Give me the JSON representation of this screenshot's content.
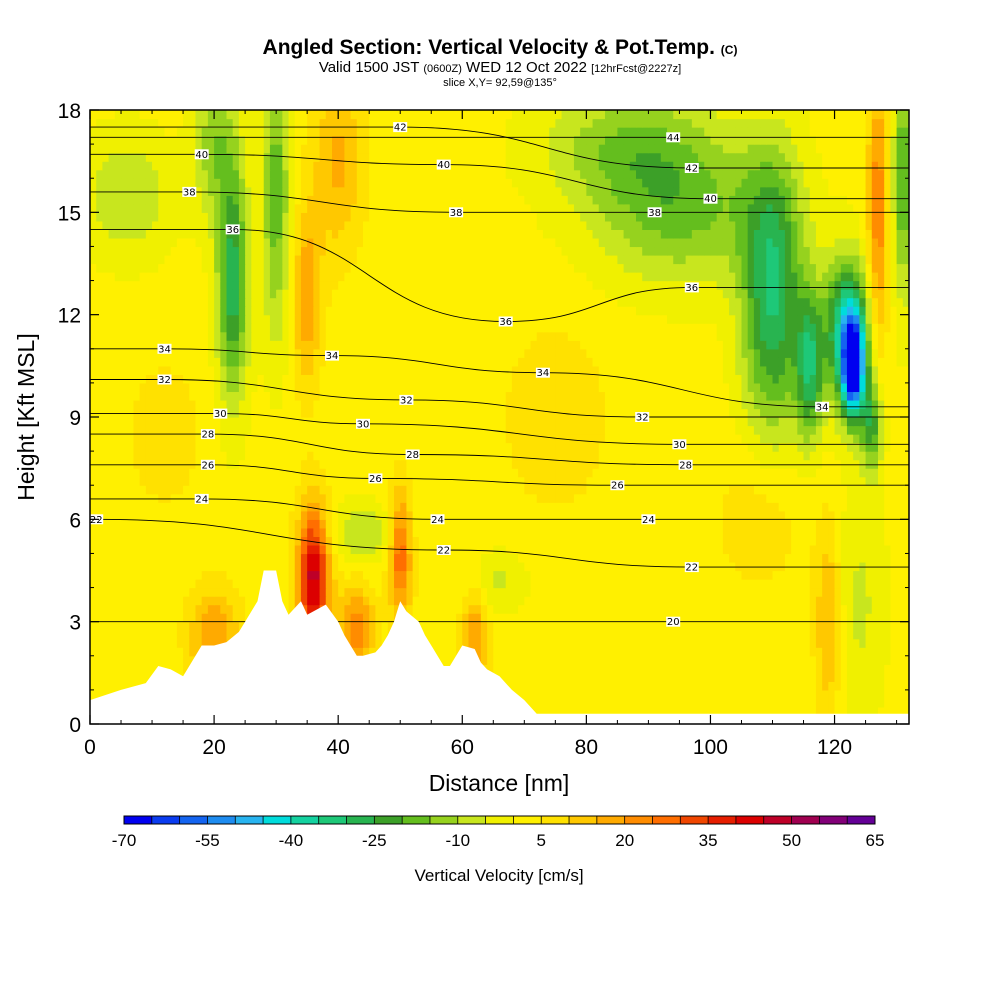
{
  "title": {
    "main": "Angled Section: Vertical Velocity & Pot.Temp.",
    "main_units": "(C)",
    "valid_prefix": "Valid 1500 JST",
    "valid_utc": "(0600Z)",
    "valid_date": "WED 12 Oct 2022",
    "forecast": "[12hrFcst@2227z]",
    "slice": "slice X,Y= 92,59@135°"
  },
  "chart_data": {
    "type": "heatmap",
    "xlabel": "Distance [nm]",
    "ylabel": "Height [Kft MSL]",
    "xlim": [
      0,
      132
    ],
    "ylim": [
      0,
      18
    ],
    "x_ticks": [
      0,
      20,
      40,
      60,
      80,
      100,
      120
    ],
    "y_ticks": [
      0,
      3,
      6,
      9,
      12,
      15,
      18
    ],
    "colorbar": {
      "title": "Vertical Velocity [cm/s]",
      "tick_labels": [
        -70,
        -55,
        -40,
        -25,
        -10,
        5,
        20,
        35,
        50,
        65
      ],
      "levels": [
        -70,
        -65,
        -60,
        -55,
        -50,
        -45,
        -40,
        -35,
        -30,
        -25,
        -20,
        -15,
        -10,
        -5,
        0,
        5,
        10,
        15,
        20,
        25,
        30,
        35,
        40,
        45,
        50,
        55,
        60,
        65
      ],
      "colors": [
        "#0000f0",
        "#0a3cf0",
        "#1464f0",
        "#1e8cf0",
        "#28b4f0",
        "#00dcdc",
        "#14d2a0",
        "#1ec878",
        "#28b450",
        "#3ca028",
        "#64be1e",
        "#96d21e",
        "#c8e61e",
        "#f0f000",
        "#fff000",
        "#ffe100",
        "#ffc800",
        "#ffaa00",
        "#ff8c00",
        "#ff6e00",
        "#f04600",
        "#e61e00",
        "#dc0000",
        "#be0028",
        "#a00050",
        "#820078",
        "#640096"
      ]
    },
    "background_value": 2,
    "features": [
      {
        "x": 36,
        "y": 4.3,
        "sx": 1.8,
        "sy": 1.5,
        "value": 45
      },
      {
        "x": 35,
        "y": 12.5,
        "sx": 1.6,
        "sy": 1.8,
        "value": 18
      },
      {
        "x": 23,
        "y": 13,
        "sx": 1.8,
        "sy": 2.4,
        "value": -30
      },
      {
        "x": 30,
        "y": 15.5,
        "sx": 1.6,
        "sy": 3.0,
        "value": -20
      },
      {
        "x": 20,
        "y": 17,
        "sx": 2.5,
        "sy": 1.5,
        "value": -15
      },
      {
        "x": 6,
        "y": 15.5,
        "sx": 5.0,
        "sy": 1.3,
        "value": -12
      },
      {
        "x": 95,
        "y": 15,
        "sx": 10.0,
        "sy": 1.5,
        "value": -18
      },
      {
        "x": 87,
        "y": 17,
        "sx": 10.0,
        "sy": 1.2,
        "value": -15
      },
      {
        "x": 110,
        "y": 12.5,
        "sx": 3.5,
        "sy": 2.8,
        "value": -32
      },
      {
        "x": 123,
        "y": 10.5,
        "sx": 1.2,
        "sy": 1.0,
        "value": -62
      },
      {
        "x": 122,
        "y": 11.5,
        "sx": 2.5,
        "sy": 1.5,
        "value": -40
      },
      {
        "x": 116,
        "y": 10.5,
        "sx": 1.5,
        "sy": 1.5,
        "value": -28
      },
      {
        "x": 126,
        "y": 8.8,
        "sx": 1.2,
        "sy": 1.0,
        "value": -25
      },
      {
        "x": 131,
        "y": 16,
        "sx": 1.2,
        "sy": 2.5,
        "value": -22
      },
      {
        "x": 127,
        "y": 15,
        "sx": 1.2,
        "sy": 3.0,
        "value": 22
      },
      {
        "x": 50,
        "y": 5,
        "sx": 1.3,
        "sy": 1.3,
        "value": 28
      },
      {
        "x": 43,
        "y": 2.8,
        "sx": 2.0,
        "sy": 0.9,
        "value": 22
      },
      {
        "x": 20,
        "y": 2.6,
        "sx": 3.0,
        "sy": 1.0,
        "value": 18
      },
      {
        "x": 62,
        "y": 2.5,
        "sx": 1.5,
        "sy": 1.0,
        "value": 18
      },
      {
        "x": 40,
        "y": 16.5,
        "sx": 3.0,
        "sy": 2.0,
        "value": 14
      },
      {
        "x": 124,
        "y": 3.5,
        "sx": 3.0,
        "sy": 2.5,
        "value": -8
      },
      {
        "x": 119,
        "y": 3.0,
        "sx": 1.5,
        "sy": 2.0,
        "value": 15
      },
      {
        "x": 44,
        "y": 5.6,
        "sx": 4.0,
        "sy": 0.6,
        "value": -12
      },
      {
        "x": 66,
        "y": 4.2,
        "sx": 3.0,
        "sy": 0.6,
        "value": -8
      },
      {
        "x": 12,
        "y": 8.5,
        "sx": 4.0,
        "sy": 1.5,
        "value": 7
      },
      {
        "x": 75,
        "y": 9,
        "sx": 6.0,
        "sy": 2.0,
        "value": 7
      },
      {
        "x": 108,
        "y": 6,
        "sx": 5.0,
        "sy": 1.5,
        "value": 7
      }
    ],
    "terrain": [
      [
        0,
        0.7
      ],
      [
        5,
        1.0
      ],
      [
        9,
        1.2
      ],
      [
        11,
        1.7
      ],
      [
        13,
        1.6
      ],
      [
        15,
        1.4
      ],
      [
        16,
        1.7
      ],
      [
        17,
        2.0
      ],
      [
        18,
        2.3
      ],
      [
        20,
        2.3
      ],
      [
        22,
        2.4
      ],
      [
        24,
        2.7
      ],
      [
        25,
        3.0
      ],
      [
        27,
        3.6
      ],
      [
        28,
        4.5
      ],
      [
        30,
        4.5
      ],
      [
        31,
        3.6
      ],
      [
        32,
        3.2
      ],
      [
        34,
        3.6
      ],
      [
        35,
        3.2
      ],
      [
        38,
        3.5
      ],
      [
        40,
        3.0
      ],
      [
        41,
        2.6
      ],
      [
        42,
        2.3
      ],
      [
        43,
        2.0
      ],
      [
        44,
        2.0
      ],
      [
        46,
        2.1
      ],
      [
        47,
        2.3
      ],
      [
        48,
        2.6
      ],
      [
        49,
        3.0
      ],
      [
        50,
        3.6
      ],
      [
        51,
        3.3
      ],
      [
        53,
        3.0
      ],
      [
        54,
        2.6
      ],
      [
        55,
        2.3
      ],
      [
        56,
        2.0
      ],
      [
        57,
        1.7
      ],
      [
        58,
        1.7
      ],
      [
        59,
        2.0
      ],
      [
        60,
        2.3
      ],
      [
        62,
        2.2
      ],
      [
        63,
        1.8
      ],
      [
        64,
        1.6
      ],
      [
        66,
        1.4
      ],
      [
        67,
        1.2
      ],
      [
        68,
        1.0
      ],
      [
        70,
        0.7
      ],
      [
        72,
        0.3
      ],
      [
        132,
        0.3
      ]
    ],
    "theta_contours": {
      "units": "°C",
      "labeled": [
        {
          "label": "20",
          "x": 94,
          "y": 3.0
        },
        {
          "label": "22",
          "x": 1,
          "y": 6.0
        },
        {
          "label": "22",
          "x": 57,
          "y": 5.1
        },
        {
          "label": "22",
          "x": 97,
          "y": 4.6
        },
        {
          "label": "24",
          "x": 18,
          "y": 6.6
        },
        {
          "label": "24",
          "x": 56,
          "y": 6.0
        },
        {
          "label": "24",
          "x": 90,
          "y": 6.0
        },
        {
          "label": "26",
          "x": 19,
          "y": 7.6
        },
        {
          "label": "26",
          "x": 46,
          "y": 7.2
        },
        {
          "label": "26",
          "x": 85,
          "y": 7.0
        },
        {
          "label": "28",
          "x": 19,
          "y": 8.5
        },
        {
          "label": "28",
          "x": 52,
          "y": 7.9
        },
        {
          "label": "28",
          "x": 96,
          "y": 7.6
        },
        {
          "label": "30",
          "x": 21,
          "y": 9.1
        },
        {
          "label": "30",
          "x": 44,
          "y": 8.8
        },
        {
          "label": "30",
          "x": 95,
          "y": 8.2
        },
        {
          "label": "32",
          "x": 12,
          "y": 10.1
        },
        {
          "label": "32",
          "x": 51,
          "y": 9.5
        },
        {
          "label": "32",
          "x": 89,
          "y": 9.0
        },
        {
          "label": "34",
          "x": 12,
          "y": 11.0
        },
        {
          "label": "34",
          "x": 39,
          "y": 10.8
        },
        {
          "label": "34",
          "x": 73,
          "y": 10.3
        },
        {
          "label": "34",
          "x": 118,
          "y": 9.3
        },
        {
          "label": "36",
          "x": 23,
          "y": 14.5
        },
        {
          "label": "36",
          "x": 67,
          "y": 11.8
        },
        {
          "label": "36",
          "x": 97,
          "y": 12.8
        },
        {
          "label": "38",
          "x": 16,
          "y": 15.6
        },
        {
          "label": "38",
          "x": 59,
          "y": 15.0
        },
        {
          "label": "38",
          "x": 91,
          "y": 15.0
        },
        {
          "label": "40",
          "x": 18,
          "y": 16.7
        },
        {
          "label": "40",
          "x": 57,
          "y": 16.4
        },
        {
          "label": "40",
          "x": 100,
          "y": 15.4
        },
        {
          "label": "42",
          "x": 50,
          "y": 17.5
        },
        {
          "label": "42",
          "x": 97,
          "y": 16.3
        },
        {
          "label": "44",
          "x": 94,
          "y": 17.2
        }
      ]
    }
  }
}
